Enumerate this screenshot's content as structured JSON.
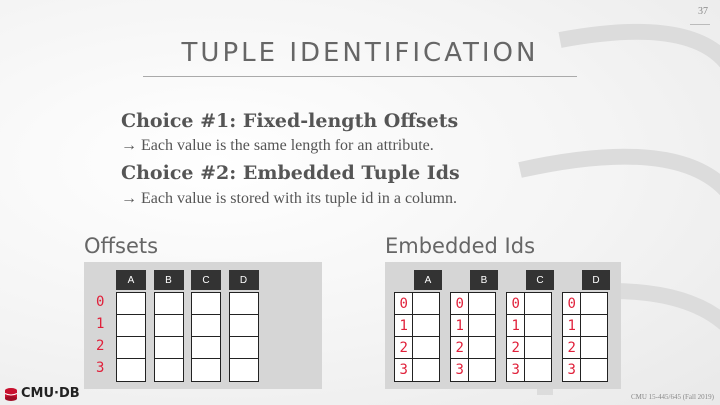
{
  "slide": {
    "page_number": "37",
    "title": "TUPLE IDENTIFICATION",
    "choices": [
      {
        "heading": "Choice #1: Fixed-length Offsets",
        "detail": "→ Each value is the same length for an attribute."
      },
      {
        "heading": "Choice #2: Embedded Tuple Ids",
        "detail": "→ Each value is stored with its tuple id in a column."
      }
    ]
  },
  "offsets": {
    "label": "Offsets",
    "columns": [
      "A",
      "B",
      "C",
      "D"
    ],
    "row_ids": [
      "0",
      "1",
      "2",
      "3"
    ]
  },
  "embedded": {
    "label": "Embedded Ids",
    "columns": [
      "A",
      "B",
      "C",
      "D"
    ],
    "row_ids": [
      "0",
      "1",
      "2",
      "3"
    ]
  },
  "footer": {
    "logo_text": "CMU·DB",
    "course": "CMU 15-445/645 (Fall 2019)"
  },
  "colors": {
    "accent_red": "#e0203a",
    "header_dark": "#333333",
    "panel_gray": "#d6d6d6"
  }
}
